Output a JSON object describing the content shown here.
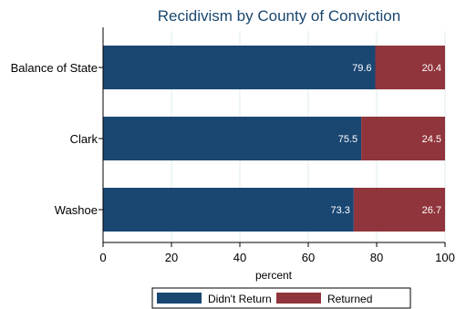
{
  "chart_data": {
    "type": "bar",
    "orientation": "horizontal",
    "stacked": true,
    "title": "Recidivism by County of Conviction",
    "xlabel": "percent",
    "ylabel": "",
    "xlim": [
      0,
      100
    ],
    "xticks": [
      0,
      20,
      40,
      60,
      80,
      100
    ],
    "grid": true,
    "legend_position": "bottom",
    "categories": [
      "Balance of State",
      "Clark",
      "Washoe"
    ],
    "series": [
      {
        "name": "Didn't Return",
        "values": [
          79.6,
          75.5,
          73.3
        ],
        "color": "#1a4672"
      },
      {
        "name": "Returned",
        "values": [
          20.4,
          24.5,
          26.7
        ],
        "color": "#90353b"
      }
    ],
    "data_labels": true,
    "title_color": "#1a476f"
  }
}
